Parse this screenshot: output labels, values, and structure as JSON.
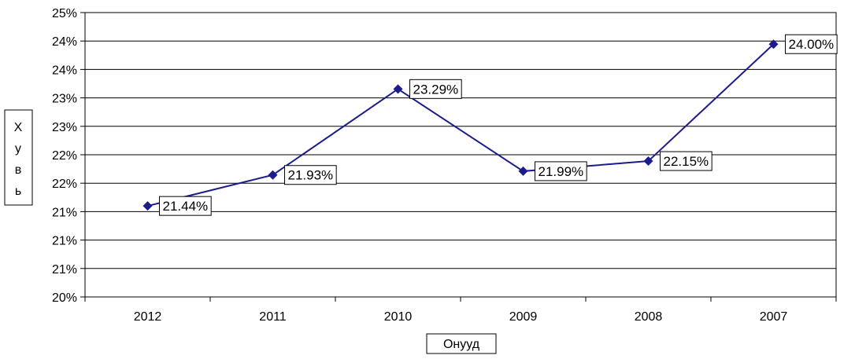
{
  "chart_data": {
    "type": "line",
    "title": "",
    "xlabel": "Онууд",
    "ylabel": "Хувь",
    "ylabel_chars": [
      "Х",
      "у",
      "в",
      "ь"
    ],
    "categories": [
      "2012",
      "2011",
      "2010",
      "2009",
      "2008",
      "2007"
    ],
    "series": [
      {
        "name": "",
        "color": "#1c1c8c",
        "values": [
          21.44,
          21.93,
          23.29,
          21.99,
          22.15,
          24.0
        ],
        "labels": [
          "21.44%",
          "21.93%",
          "23.29%",
          "21.99%",
          "22.15%",
          "24.00%"
        ]
      }
    ],
    "ylim": [
      20,
      24.5
    ],
    "y_ticks": [
      "20%",
      "21%",
      "21%",
      "21%",
      "22%",
      "22%",
      "23%",
      "23%",
      "24%",
      "24%",
      "25%"
    ],
    "grid": true,
    "legend": "none",
    "marker": "diamond"
  }
}
